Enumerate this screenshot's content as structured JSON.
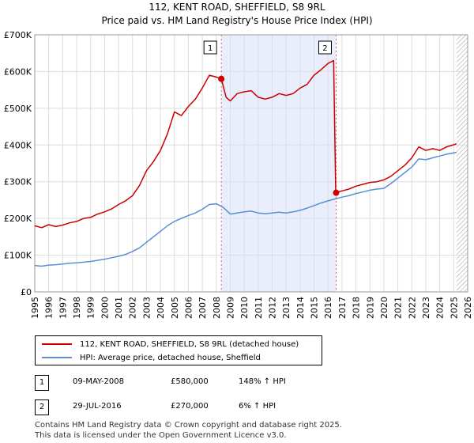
{
  "title": "112, KENT ROAD, SHEFFIELD, S8 9RL",
  "subtitle": "Price paid vs. HM Land Registry's House Price Index (HPI)",
  "chart_data": {
    "type": "line",
    "xlim": [
      1995,
      2026
    ],
    "ylim": [
      0,
      700000
    ],
    "y_ticks": [
      0,
      100000,
      200000,
      300000,
      400000,
      500000,
      600000,
      700000
    ],
    "y_tick_labels": [
      "£0",
      "£100K",
      "£200K",
      "£300K",
      "£400K",
      "£500K",
      "£600K",
      "£700K"
    ],
    "x_ticks": [
      "1995",
      "1996",
      "1997",
      "1998",
      "1999",
      "2000",
      "2001",
      "2002",
      "2003",
      "2004",
      "2005",
      "2006",
      "2007",
      "2008",
      "2009",
      "2010",
      "2011",
      "2012",
      "2013",
      "2014",
      "2015",
      "2016",
      "2017",
      "2018",
      "2019",
      "2020",
      "2021",
      "2022",
      "2023",
      "2024",
      "2025",
      "2026"
    ],
    "ownership_shade": [
      2008.36,
      2016.58
    ],
    "future_hatch_from": 2025.2,
    "series": [
      {
        "name": "112, KENT ROAD, SHEFFIELD, S8 9RL (detached house)",
        "color": "#cc0000",
        "points": [
          [
            1995.0,
            180000
          ],
          [
            1995.5,
            175000
          ],
          [
            1996.0,
            183000
          ],
          [
            1996.5,
            178000
          ],
          [
            1997.0,
            182000
          ],
          [
            1997.5,
            188000
          ],
          [
            1998.0,
            192000
          ],
          [
            1998.5,
            200000
          ],
          [
            1999.0,
            203000
          ],
          [
            1999.5,
            212000
          ],
          [
            2000.0,
            218000
          ],
          [
            2000.5,
            226000
          ],
          [
            2001.0,
            238000
          ],
          [
            2001.5,
            248000
          ],
          [
            2002.0,
            262000
          ],
          [
            2002.5,
            290000
          ],
          [
            2003.0,
            330000
          ],
          [
            2003.5,
            355000
          ],
          [
            2004.0,
            385000
          ],
          [
            2004.5,
            430000
          ],
          [
            2005.0,
            490000
          ],
          [
            2005.5,
            480000
          ],
          [
            2006.0,
            505000
          ],
          [
            2006.5,
            525000
          ],
          [
            2007.0,
            555000
          ],
          [
            2007.5,
            590000
          ],
          [
            2008.0,
            585000
          ],
          [
            2008.36,
            580000
          ],
          [
            2008.7,
            530000
          ],
          [
            2009.0,
            520000
          ],
          [
            2009.5,
            540000
          ],
          [
            2010.0,
            545000
          ],
          [
            2010.5,
            548000
          ],
          [
            2011.0,
            530000
          ],
          [
            2011.5,
            525000
          ],
          [
            2012.0,
            530000
          ],
          [
            2012.5,
            540000
          ],
          [
            2013.0,
            535000
          ],
          [
            2013.5,
            540000
          ],
          [
            2014.0,
            555000
          ],
          [
            2014.5,
            565000
          ],
          [
            2015.0,
            590000
          ],
          [
            2015.5,
            605000
          ],
          [
            2016.0,
            622000
          ],
          [
            2016.4,
            630000
          ],
          [
            2016.55,
            280000
          ],
          [
            2016.58,
            270000
          ],
          [
            2017.0,
            275000
          ],
          [
            2017.5,
            280000
          ],
          [
            2018.0,
            288000
          ],
          [
            2018.5,
            293000
          ],
          [
            2019.0,
            298000
          ],
          [
            2019.5,
            300000
          ],
          [
            2020.0,
            305000
          ],
          [
            2020.5,
            315000
          ],
          [
            2021.0,
            330000
          ],
          [
            2021.5,
            345000
          ],
          [
            2022.0,
            365000
          ],
          [
            2022.5,
            395000
          ],
          [
            2023.0,
            385000
          ],
          [
            2023.5,
            390000
          ],
          [
            2024.0,
            385000
          ],
          [
            2024.5,
            395000
          ],
          [
            2025.2,
            403000
          ]
        ]
      },
      {
        "name": "HPI: Average price, detached house, Sheffield",
        "color": "#5b8ed6",
        "points": [
          [
            1995.0,
            72000
          ],
          [
            1995.5,
            70000
          ],
          [
            1996.0,
            73000
          ],
          [
            1996.5,
            74000
          ],
          [
            1997.0,
            76000
          ],
          [
            1997.5,
            78000
          ],
          [
            1998.0,
            79000
          ],
          [
            1998.5,
            81000
          ],
          [
            1999.0,
            83000
          ],
          [
            1999.5,
            86000
          ],
          [
            2000.0,
            89000
          ],
          [
            2000.5,
            93000
          ],
          [
            2001.0,
            97000
          ],
          [
            2001.5,
            102000
          ],
          [
            2002.0,
            110000
          ],
          [
            2002.5,
            120000
          ],
          [
            2003.0,
            135000
          ],
          [
            2003.5,
            150000
          ],
          [
            2004.0,
            165000
          ],
          [
            2004.5,
            180000
          ],
          [
            2005.0,
            192000
          ],
          [
            2005.5,
            200000
          ],
          [
            2006.0,
            208000
          ],
          [
            2006.5,
            215000
          ],
          [
            2007.0,
            225000
          ],
          [
            2007.5,
            238000
          ],
          [
            2008.0,
            240000
          ],
          [
            2008.5,
            230000
          ],
          [
            2009.0,
            212000
          ],
          [
            2009.5,
            215000
          ],
          [
            2010.0,
            218000
          ],
          [
            2010.5,
            220000
          ],
          [
            2011.0,
            215000
          ],
          [
            2011.5,
            213000
          ],
          [
            2012.0,
            215000
          ],
          [
            2012.5,
            217000
          ],
          [
            2013.0,
            215000
          ],
          [
            2013.5,
            218000
          ],
          [
            2014.0,
            222000
          ],
          [
            2014.5,
            228000
          ],
          [
            2015.0,
            235000
          ],
          [
            2015.5,
            242000
          ],
          [
            2016.0,
            248000
          ],
          [
            2016.5,
            253000
          ],
          [
            2017.0,
            258000
          ],
          [
            2017.5,
            262000
          ],
          [
            2018.0,
            268000
          ],
          [
            2018.5,
            272000
          ],
          [
            2019.0,
            277000
          ],
          [
            2019.5,
            280000
          ],
          [
            2020.0,
            282000
          ],
          [
            2020.5,
            295000
          ],
          [
            2021.0,
            310000
          ],
          [
            2021.5,
            325000
          ],
          [
            2022.0,
            340000
          ],
          [
            2022.5,
            362000
          ],
          [
            2023.0,
            360000
          ],
          [
            2023.5,
            365000
          ],
          [
            2024.0,
            370000
          ],
          [
            2024.5,
            375000
          ],
          [
            2025.2,
            380000
          ]
        ]
      }
    ],
    "annotations": [
      {
        "label": "1",
        "x": 2008.36,
        "y": 580000,
        "date": "09-MAY-2008",
        "price": "£580,000",
        "hpi": "148% ↑ HPI"
      },
      {
        "label": "2",
        "x": 2016.58,
        "y": 270000,
        "date": "29-JUL-2016",
        "price": "£270,000",
        "hpi": "6% ↑ HPI"
      }
    ]
  },
  "footer": {
    "line1": "Contains HM Land Registry data © Crown copyright and database right 2025.",
    "line2": "This data is licensed under the Open Government Licence v3.0."
  }
}
